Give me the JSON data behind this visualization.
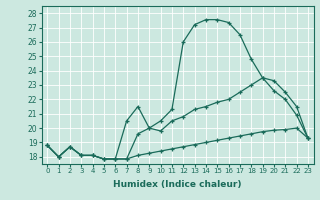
{
  "xlabel": "Humidex (Indice chaleur)",
  "background_color": "#cce8e0",
  "line_color": "#1a6b5a",
  "grid_color": "#ffffff",
  "xlim": [
    -0.5,
    23.5
  ],
  "ylim": [
    17.5,
    28.5
  ],
  "xticks": [
    0,
    1,
    2,
    3,
    4,
    5,
    6,
    7,
    8,
    9,
    10,
    11,
    12,
    13,
    14,
    15,
    16,
    17,
    18,
    19,
    20,
    21,
    22,
    23
  ],
  "yticks": [
    18,
    19,
    20,
    21,
    22,
    23,
    24,
    25,
    26,
    27,
    28
  ],
  "line1_x": [
    0,
    1,
    2,
    3,
    4,
    5,
    6,
    7,
    8,
    9,
    10,
    11,
    12,
    13,
    14,
    15,
    16,
    17,
    18,
    19,
    20,
    21,
    22,
    23
  ],
  "line1_y": [
    18.8,
    18.0,
    18.7,
    18.1,
    18.1,
    17.85,
    17.85,
    17.85,
    19.6,
    20.0,
    20.5,
    21.3,
    26.0,
    27.2,
    27.55,
    27.55,
    27.35,
    26.5,
    24.8,
    23.5,
    22.6,
    22.0,
    20.9,
    19.3
  ],
  "line2_x": [
    0,
    1,
    2,
    3,
    4,
    5,
    6,
    7,
    8,
    9,
    10,
    11,
    12,
    13,
    14,
    15,
    16,
    17,
    18,
    19,
    20,
    21,
    22,
    23
  ],
  "line2_y": [
    18.8,
    18.0,
    18.7,
    18.1,
    18.1,
    17.85,
    17.85,
    20.5,
    21.5,
    20.0,
    19.8,
    20.5,
    20.8,
    21.3,
    21.5,
    21.8,
    22.0,
    22.5,
    23.0,
    23.5,
    23.3,
    22.5,
    21.5,
    19.3
  ],
  "line3_x": [
    0,
    1,
    2,
    3,
    4,
    5,
    6,
    7,
    8,
    9,
    10,
    11,
    12,
    13,
    14,
    15,
    16,
    17,
    18,
    19,
    20,
    21,
    22,
    23
  ],
  "line3_y": [
    18.8,
    18.0,
    18.7,
    18.1,
    18.1,
    17.85,
    17.85,
    17.85,
    18.1,
    18.25,
    18.4,
    18.55,
    18.7,
    18.85,
    19.0,
    19.15,
    19.3,
    19.45,
    19.6,
    19.75,
    19.85,
    19.9,
    20.0,
    19.3
  ]
}
